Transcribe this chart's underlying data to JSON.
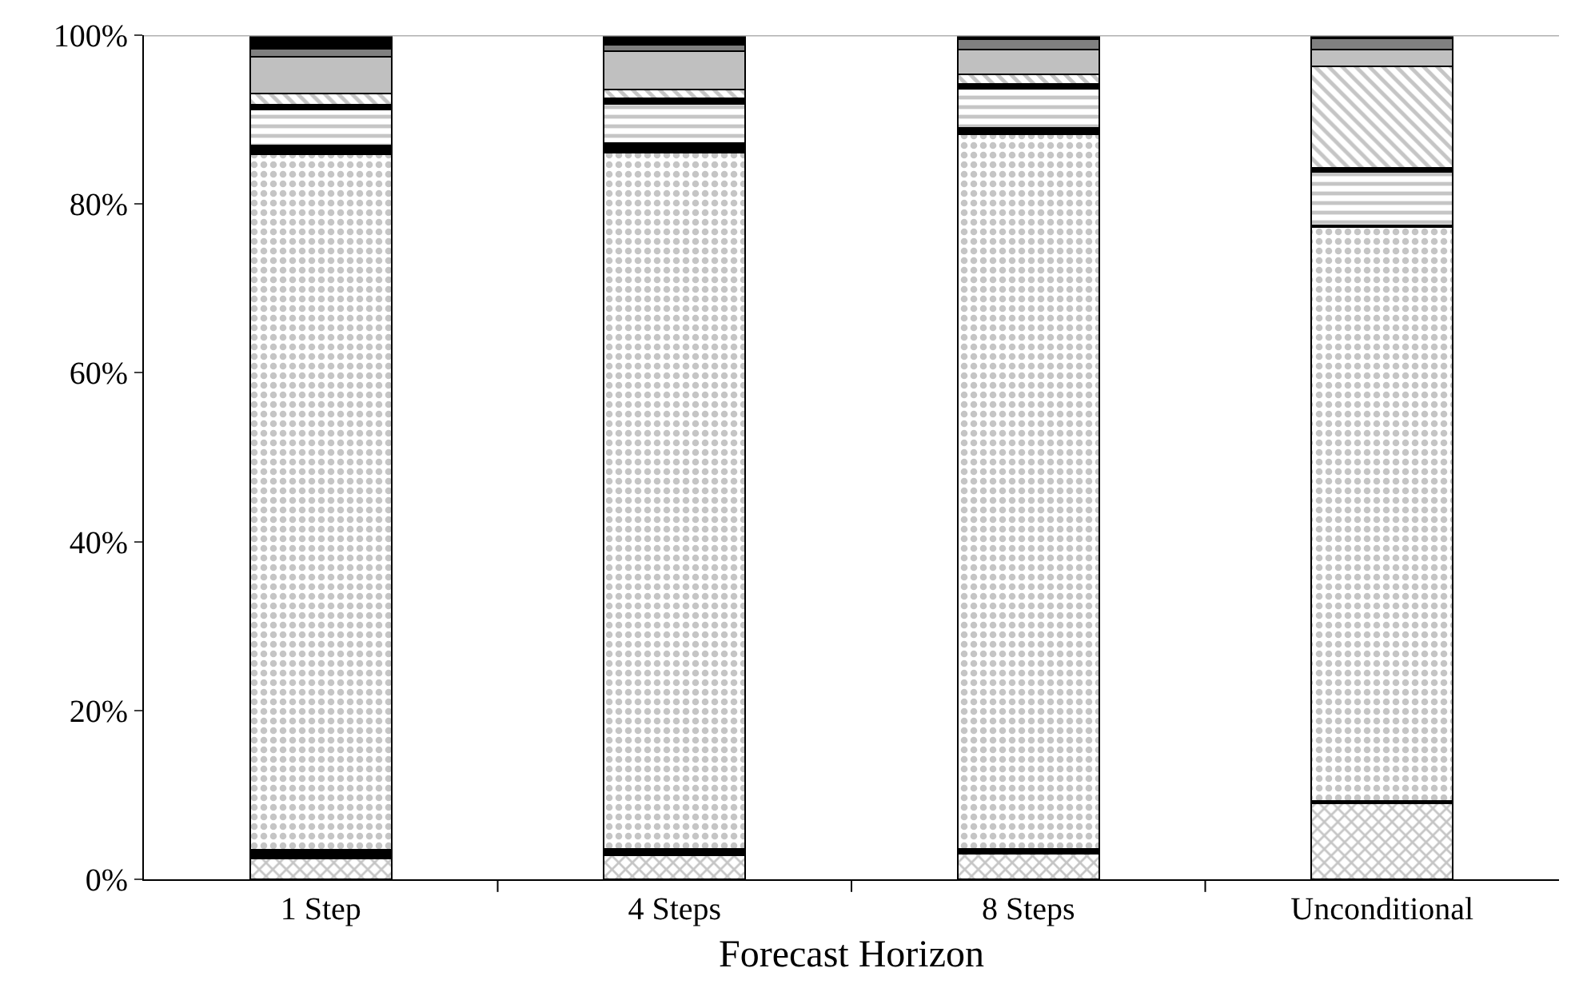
{
  "chart_data": {
    "type": "bar",
    "stacked": true,
    "xlabel": "Forecast Horizon",
    "categories": [
      "1 Step",
      "4 Steps",
      "8 Steps",
      "Unconditional"
    ],
    "ylim": [
      0,
      100
    ],
    "yticks": [
      {
        "value": 0,
        "label": "0%"
      },
      {
        "value": 20,
        "label": "20%"
      },
      {
        "value": 40,
        "label": "40%"
      },
      {
        "value": 60,
        "label": "60%"
      },
      {
        "value": 80,
        "label": "80%"
      },
      {
        "value": 100,
        "label": "100%"
      }
    ],
    "series": [
      {
        "color": "#000000",
        "values": [
          2.5,
          2.8,
          3.0,
          9.0
        ]
      },
      {
        "color": "#000000",
        "values": [
          1.0,
          0.8,
          0.6,
          0.3
        ]
      },
      {
        "color": "#000000",
        "values": [
          82.4,
          82.5,
          84.7,
          68.0
        ]
      },
      {
        "color": "#000000",
        "values": [
          1.0,
          1.1,
          0.7,
          0.2
        ]
      },
      {
        "color": "#000000",
        "values": [
          4.3,
          4.7,
          4.7,
          6.3
        ]
      },
      {
        "color": "#000000",
        "values": [
          0.6,
          0.6,
          0.5,
          0.5
        ]
      },
      {
        "color": "#000000",
        "values": [
          1.3,
          1.1,
          1.2,
          12.0
        ]
      },
      {
        "color": "#c0c0c0",
        "values": [
          4.3,
          4.5,
          2.9,
          2.0
        ]
      },
      {
        "color": "#808080",
        "values": [
          1.0,
          0.8,
          1.2,
          1.3
        ]
      },
      {
        "color": "#000000",
        "values": [
          1.6,
          1.1,
          0.5,
          0.4
        ]
      }
    ]
  }
}
